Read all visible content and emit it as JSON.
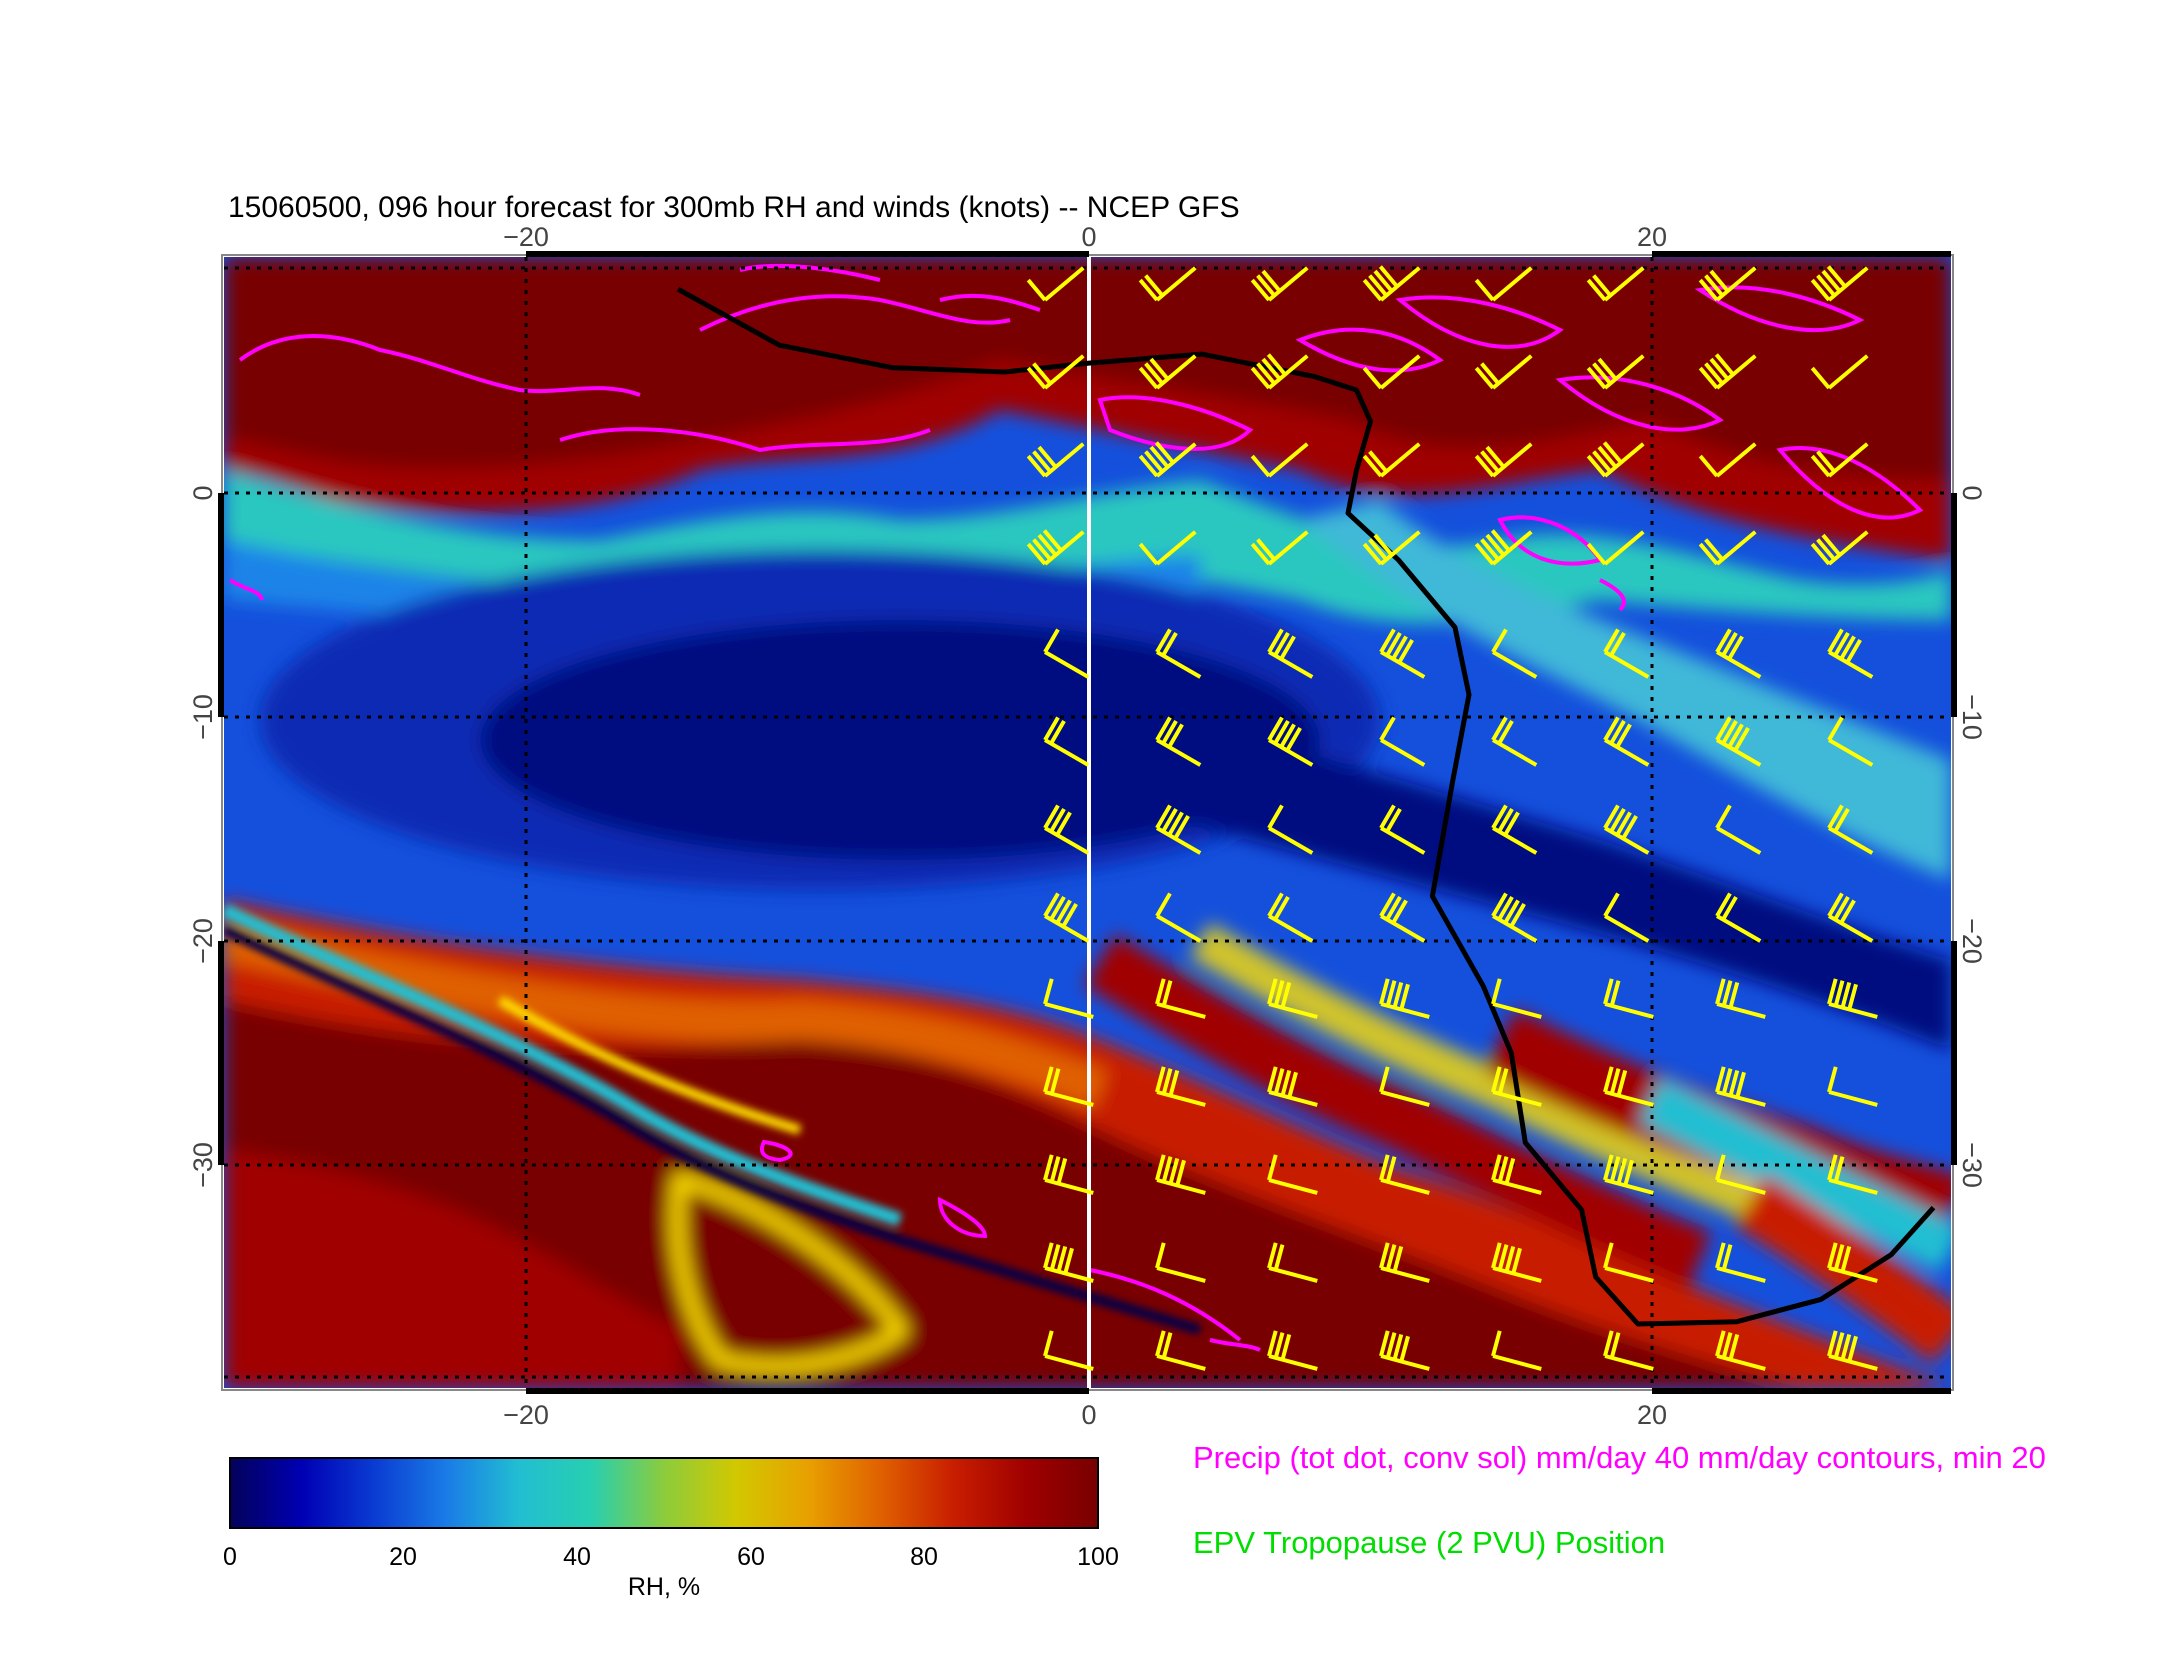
{
  "title": "15060500, 096 hour forecast for 300mb RH and winds (knots) -- NCEP GFS",
  "map": {
    "lon_range": [
      -31,
      30
    ],
    "lat_range": [
      -40,
      10.5
    ],
    "grid_lons": [
      -20,
      0,
      20
    ],
    "grid_lats": [
      0,
      -10,
      -20,
      -30
    ],
    "top_tick_labels": [
      "−20",
      "0",
      "20"
    ],
    "bottom_tick_labels": [
      "−20",
      "0",
      "20"
    ],
    "left_tick_labels": [
      "0",
      "−10",
      "−20",
      "−30"
    ],
    "right_tick_labels": [
      "0",
      "−10",
      "−20",
      "−30"
    ]
  },
  "colorbar": {
    "label": "RH, %",
    "ticks": [
      "0",
      "20",
      "40",
      "60",
      "80",
      "100"
    ],
    "range": [
      0,
      100
    ],
    "colors": [
      "#03025a",
      "#0000b4",
      "#0a3cd2",
      "#1a7ce6",
      "#22bed2",
      "#28cfb0",
      "#8ccc3c",
      "#d2c800",
      "#e8a000",
      "#e06000",
      "#c81e00",
      "#a00000",
      "#780000"
    ]
  },
  "legend": {
    "precip": "Precip (tot dot, conv sol) mm/day 40 mm/day contours, min 20",
    "precip_color": "#ff00ff",
    "tropopause": "EPV Tropopause (2 PVU) Position",
    "tropopause_color": "#00dd00"
  },
  "colors": {
    "wind_barbs": "#ffff00",
    "tropopause_line": "#000000",
    "grid": "#000000",
    "meridian_0": "#ffffff"
  },
  "tropopause_path": [
    [
      -14.6,
      9.1
    ],
    [
      -11,
      6.6
    ],
    [
      -7,
      5.6
    ],
    [
      -3,
      5.4
    ],
    [
      0,
      5.8
    ],
    [
      4,
      6.2
    ],
    [
      6,
      5.7
    ],
    [
      8,
      5.2
    ],
    [
      9.5,
      4.6
    ],
    [
      10,
      3.2
    ],
    [
      9.5,
      1
    ],
    [
      9.2,
      -0.9
    ],
    [
      11,
      -3
    ],
    [
      13,
      -6
    ],
    [
      13.5,
      -9
    ],
    [
      12.9,
      -13
    ],
    [
      12.2,
      -18
    ],
    [
      14,
      -22
    ],
    [
      15,
      -25
    ],
    [
      15.5,
      -29
    ],
    [
      17.5,
      -32
    ],
    [
      18,
      -35
    ],
    [
      19.5,
      -37.1
    ],
    [
      23,
      -37
    ],
    [
      26,
      -36
    ],
    [
      28.5,
      -34
    ],
    [
      30,
      -31.9
    ]
  ]
}
